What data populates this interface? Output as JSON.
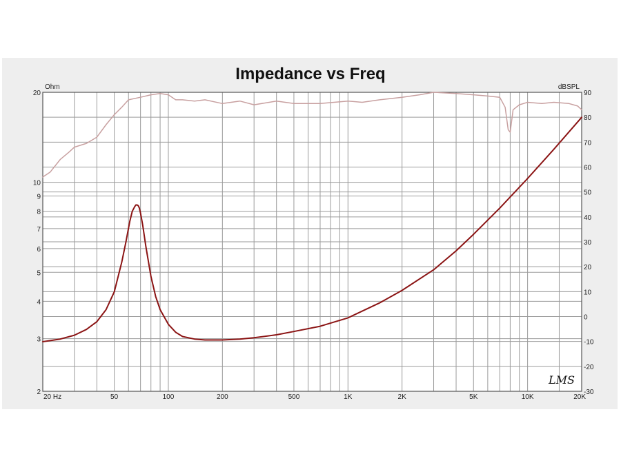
{
  "chart_data": {
    "type": "line",
    "title": "Impedance vs Freq",
    "left_unit": "Ohm",
    "right_unit": "dBSPL",
    "signature": "LMS",
    "x_scale": "log",
    "xlim": [
      20,
      20000
    ],
    "x_ticks": [
      {
        "value": 20,
        "label": "20 Hz"
      },
      {
        "value": 50,
        "label": "50"
      },
      {
        "value": 100,
        "label": "100"
      },
      {
        "value": 200,
        "label": "200"
      },
      {
        "value": 500,
        "label": "500"
      },
      {
        "value": 1000,
        "label": "1K"
      },
      {
        "value": 2000,
        "label": "2K"
      },
      {
        "value": 5000,
        "label": "5K"
      },
      {
        "value": 10000,
        "label": "10K"
      },
      {
        "value": 20000,
        "label": "20K"
      }
    ],
    "y_left_scale": "log",
    "y_left_lim": [
      2,
      20
    ],
    "y_left_ticks": [
      {
        "value": 2,
        "label": "2"
      },
      {
        "value": 3,
        "label": "3"
      },
      {
        "value": 4,
        "label": "4"
      },
      {
        "value": 5,
        "label": "5"
      },
      {
        "value": 6,
        "label": "6"
      },
      {
        "value": 7,
        "label": "7"
      },
      {
        "value": 8,
        "label": "8"
      },
      {
        "value": 9,
        "label": "9"
      },
      {
        "value": 10,
        "label": "10"
      },
      {
        "value": 20,
        "label": "20"
      }
    ],
    "y_right_lim": [
      -30,
      90
    ],
    "y_right_ticks": [
      {
        "value": -30,
        "label": "-30"
      },
      {
        "value": -20,
        "label": "-20"
      },
      {
        "value": -10,
        "label": "-10"
      },
      {
        "value": 0,
        "label": "0"
      },
      {
        "value": 10,
        "label": "10"
      },
      {
        "value": 20,
        "label": "20"
      },
      {
        "value": 30,
        "label": "30"
      },
      {
        "value": 40,
        "label": "40"
      },
      {
        "value": 50,
        "label": "50"
      },
      {
        "value": 60,
        "label": "60"
      },
      {
        "value": 70,
        "label": "70"
      },
      {
        "value": 80,
        "label": "80"
      },
      {
        "value": 90,
        "label": "90"
      }
    ],
    "grid": true,
    "series": [
      {
        "axis": "left",
        "color": "#8b1414",
        "x": [
          20,
          25,
          30,
          35,
          40,
          45,
          50,
          55,
          58,
          61,
          63,
          65,
          66,
          67,
          68,
          69,
          70,
          72,
          75,
          80,
          85,
          90,
          100,
          110,
          120,
          140,
          160,
          200,
          250,
          300,
          400,
          500,
          700,
          1000,
          1500,
          2000,
          3000,
          4000,
          5000,
          7000,
          10000,
          14000,
          20000
        ],
        "y": [
          2.93,
          2.99,
          3.08,
          3.22,
          3.42,
          3.75,
          4.3,
          5.4,
          6.3,
          7.4,
          8.0,
          8.3,
          8.4,
          8.4,
          8.35,
          8.2,
          7.9,
          7.2,
          6.1,
          4.85,
          4.15,
          3.75,
          3.35,
          3.15,
          3.05,
          2.99,
          2.97,
          2.97,
          2.99,
          3.02,
          3.09,
          3.17,
          3.3,
          3.52,
          3.95,
          4.35,
          5.1,
          5.9,
          6.7,
          8.2,
          10.3,
          12.9,
          16.5
        ]
      },
      {
        "axis": "right",
        "color": "#c8a0a0",
        "x": [
          20,
          22,
          25,
          28,
          30,
          35,
          40,
          45,
          50,
          55,
          60,
          70,
          80,
          90,
          100,
          110,
          120,
          140,
          160,
          200,
          250,
          300,
          400,
          500,
          700,
          1000,
          1200,
          1500,
          2000,
          2500,
          3000,
          4000,
          5000,
          6000,
          7000,
          7500,
          7800,
          8000,
          8300,
          9000,
          10000,
          12000,
          14000,
          17000,
          19000,
          20000
        ],
        "y": [
          56,
          58,
          63,
          66,
          68,
          69.5,
          72,
          77,
          81,
          84,
          87,
          88,
          89,
          89.5,
          89,
          87,
          87,
          86.5,
          87,
          85.5,
          86.5,
          85,
          86.5,
          85.5,
          85.5,
          86.5,
          86,
          87,
          88,
          89,
          90,
          89.5,
          89,
          88.5,
          88,
          84,
          75,
          74,
          83,
          85,
          86,
          85.5,
          86,
          85.5,
          84.5,
          83
        ]
      }
    ]
  }
}
